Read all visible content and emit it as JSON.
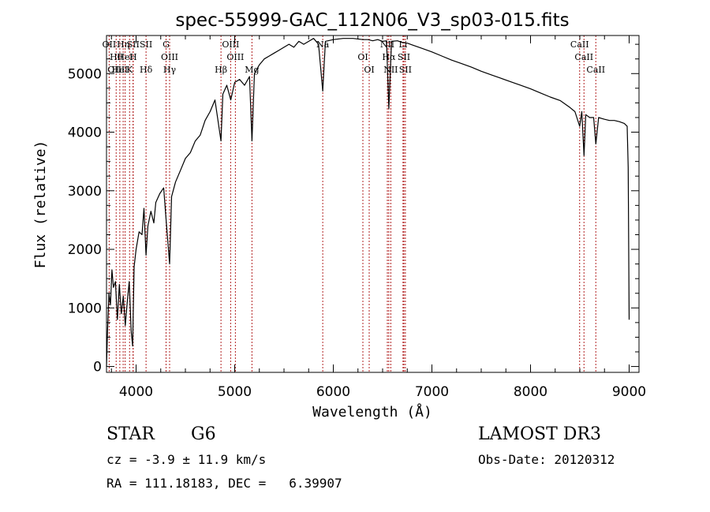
{
  "chart_data": {
    "type": "line",
    "title": "spec-55999-GAC_112N06_V3_sp03-015.fits",
    "xlabel": "Wavelength (Å)",
    "ylabel": "Flux (relative)",
    "xlim": [
      3700,
      9100
    ],
    "ylim": [
      -100,
      5650
    ],
    "xticks": [
      4000,
      5000,
      6000,
      7000,
      8000,
      9000
    ],
    "yticks": [
      0,
      1000,
      2000,
      3000,
      4000,
      5000
    ],
    "grid": false,
    "series": [
      {
        "name": "flux",
        "points": [
          [
            3700,
            0
          ],
          [
            3710,
            600
          ],
          [
            3725,
            1250
          ],
          [
            3740,
            1050
          ],
          [
            3755,
            1650
          ],
          [
            3770,
            1350
          ],
          [
            3790,
            1450
          ],
          [
            3810,
            800
          ],
          [
            3830,
            1400
          ],
          [
            3850,
            900
          ],
          [
            3870,
            1200
          ],
          [
            3890,
            700
          ],
          [
            3910,
            1100
          ],
          [
            3930,
            1450
          ],
          [
            3950,
            600
          ],
          [
            3965,
            350
          ],
          [
            3980,
            1700
          ],
          [
            4000,
            2000
          ],
          [
            4030,
            2300
          ],
          [
            4060,
            2250
          ],
          [
            4080,
            2700
          ],
          [
            4101,
            1900
          ],
          [
            4120,
            2400
          ],
          [
            4150,
            2650
          ],
          [
            4180,
            2450
          ],
          [
            4200,
            2800
          ],
          [
            4240,
            2950
          ],
          [
            4280,
            3050
          ],
          [
            4300,
            2600
          ],
          [
            4340,
            1750
          ],
          [
            4360,
            2900
          ],
          [
            4400,
            3150
          ],
          [
            4450,
            3350
          ],
          [
            4500,
            3550
          ],
          [
            4550,
            3650
          ],
          [
            4600,
            3850
          ],
          [
            4650,
            3950
          ],
          [
            4700,
            4200
          ],
          [
            4750,
            4350
          ],
          [
            4800,
            4550
          ],
          [
            4861,
            3850
          ],
          [
            4880,
            4650
          ],
          [
            4920,
            4800
          ],
          [
            4960,
            4550
          ],
          [
            5000,
            4850
          ],
          [
            5050,
            4900
          ],
          [
            5100,
            4800
          ],
          [
            5150,
            4950
          ],
          [
            5175,
            3850
          ],
          [
            5200,
            5000
          ],
          [
            5250,
            5150
          ],
          [
            5300,
            5250
          ],
          [
            5350,
            5300
          ],
          [
            5400,
            5350
          ],
          [
            5450,
            5400
          ],
          [
            5500,
            5450
          ],
          [
            5550,
            5500
          ],
          [
            5600,
            5450
          ],
          [
            5650,
            5550
          ],
          [
            5700,
            5500
          ],
          [
            5750,
            5550
          ],
          [
            5800,
            5600
          ],
          [
            5850,
            5500
          ],
          [
            5893,
            4700
          ],
          [
            5920,
            5550
          ],
          [
            6000,
            5580
          ],
          [
            6100,
            5600
          ],
          [
            6200,
            5600
          ],
          [
            6300,
            5580
          ],
          [
            6350,
            5580
          ],
          [
            6400,
            5560
          ],
          [
            6450,
            5580
          ],
          [
            6500,
            5550
          ],
          [
            6540,
            5560
          ],
          [
            6563,
            4400
          ],
          [
            6590,
            5550
          ],
          [
            6650,
            5560
          ],
          [
            6700,
            5530
          ],
          [
            6750,
            5520
          ],
          [
            6800,
            5490
          ],
          [
            6900,
            5430
          ],
          [
            7000,
            5370
          ],
          [
            7100,
            5300
          ],
          [
            7200,
            5230
          ],
          [
            7300,
            5170
          ],
          [
            7400,
            5110
          ],
          [
            7500,
            5040
          ],
          [
            7600,
            4980
          ],
          [
            7700,
            4920
          ],
          [
            7800,
            4860
          ],
          [
            7900,
            4800
          ],
          [
            8000,
            4740
          ],
          [
            8100,
            4670
          ],
          [
            8200,
            4600
          ],
          [
            8300,
            4540
          ],
          [
            8400,
            4420
          ],
          [
            8450,
            4350
          ],
          [
            8498,
            4100
          ],
          [
            8520,
            4350
          ],
          [
            8542,
            3600
          ],
          [
            8560,
            4300
          ],
          [
            8600,
            4250
          ],
          [
            8640,
            4250
          ],
          [
            8662,
            3800
          ],
          [
            8690,
            4250
          ],
          [
            8750,
            4220
          ],
          [
            8800,
            4200
          ],
          [
            8850,
            4200
          ],
          [
            8900,
            4180
          ],
          [
            8950,
            4150
          ],
          [
            8980,
            4100
          ],
          [
            8990,
            3400
          ],
          [
            9000,
            800
          ]
        ]
      }
    ],
    "lines": [
      {
        "wavelength": 3727,
        "labels": [
          "OII"
        ]
      },
      {
        "wavelength": 3798,
        "labels": [
          "Hθ",
          "OIII"
        ]
      },
      {
        "wavelength": 3835,
        "labels": [
          "HeI"
        ]
      },
      {
        "wavelength": 3869,
        "labels": [
          "Hη"
        ]
      },
      {
        "wavelength": 3889,
        "labels": [
          "HeI"
        ]
      },
      {
        "wavelength": 3934,
        "labels": [
          "K"
        ]
      },
      {
        "wavelength": 3970,
        "labels": [
          "SII"
        ]
      },
      {
        "wavelength": 3970,
        "labels": [
          "H"
        ]
      },
      {
        "wavelength": 4101,
        "labels": [
          "Hδ",
          "SII"
        ]
      },
      {
        "wavelength": 4304,
        "labels": [
          "G"
        ]
      },
      {
        "wavelength": 4340,
        "labels": [
          "OIII",
          "Hγ"
        ]
      },
      {
        "wavelength": 4861,
        "labels": [
          "Hβ"
        ]
      },
      {
        "wavelength": 4959,
        "labels": [
          "OIII"
        ]
      },
      {
        "wavelength": 5007,
        "labels": [
          "OIII"
        ]
      },
      {
        "wavelength": 5175,
        "labels": [
          "Mg"
        ]
      },
      {
        "wavelength": 5893,
        "labels": [
          "Na"
        ]
      },
      {
        "wavelength": 6300,
        "labels": [
          "OI"
        ]
      },
      {
        "wavelength": 6364,
        "labels": [
          "OI"
        ]
      },
      {
        "wavelength": 6548,
        "labels": [
          "NII"
        ]
      },
      {
        "wavelength": 6563,
        "labels": [
          "Hα"
        ]
      },
      {
        "wavelength": 6583,
        "labels": [
          "NII"
        ]
      },
      {
        "wavelength": 6707,
        "labels": [
          "Li"
        ]
      },
      {
        "wavelength": 6716,
        "labels": [
          "SII"
        ]
      },
      {
        "wavelength": 6731,
        "labels": [
          "SII"
        ]
      },
      {
        "wavelength": 8498,
        "labels": [
          "CaII"
        ]
      },
      {
        "wavelength": 8542,
        "labels": [
          "CaII"
        ]
      },
      {
        "wavelength": 8662,
        "labels": [
          "CaII"
        ]
      }
    ]
  },
  "info": {
    "class_label": "STAR",
    "subclass": "G6",
    "survey": "LAMOST DR3",
    "cz": "cz = -3.9 ± 11.9 km/s",
    "obs_date": "Obs-Date: 20120312",
    "coords": "RA = 111.18183, DEC =   6.39907"
  },
  "colors": {
    "spectrum": "#000000",
    "line_markers": "#b22222",
    "axes": "#000000",
    "background": "#ffffff"
  }
}
